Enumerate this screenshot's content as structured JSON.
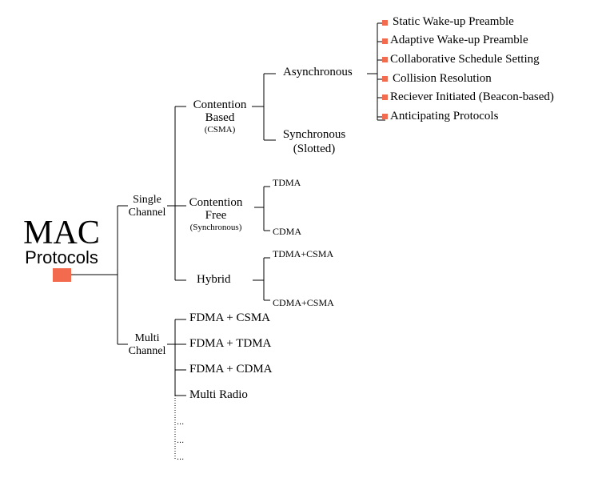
{
  "colors": {
    "accent": "#f26b4f",
    "line": "#000000"
  },
  "root": {
    "title": "MAC",
    "subtitle": "Protocols"
  },
  "channels": {
    "single": {
      "line1": "Single",
      "line2": "Channel"
    },
    "multi": {
      "line1": "Multi",
      "line2": "Channel"
    }
  },
  "single_branches": {
    "contention_based": {
      "line1": "Contention",
      "line2": "Based",
      "line3": "(CSMA)"
    },
    "contention_free": {
      "line1": "Contention",
      "line2": "Free",
      "line3": "(Synchronous)"
    },
    "hybrid": {
      "label": "Hybrid"
    }
  },
  "contention_based_types": {
    "asynchronous": "Asynchronous",
    "synchronous": {
      "line1": "Synchronous",
      "line2": "(Slotted)"
    }
  },
  "async_protocols": [
    "Static Wake-up Preamble",
    "Adaptive Wake-up Preamble",
    "Collaborative Schedule Setting",
    "Collision Resolution",
    "Reciever Initiated (Beacon-based)",
    "Anticipating Protocols"
  ],
  "contention_free_types": [
    "TDMA",
    "CDMA"
  ],
  "hybrid_types": [
    "TDMA+CSMA",
    "CDMA+CSMA"
  ],
  "multi_types": [
    "FDMA + CSMA",
    "FDMA + TDMA",
    "FDMA + CDMA",
    "Multi Radio"
  ],
  "ellipses": [
    "...",
    "...",
    "..."
  ]
}
